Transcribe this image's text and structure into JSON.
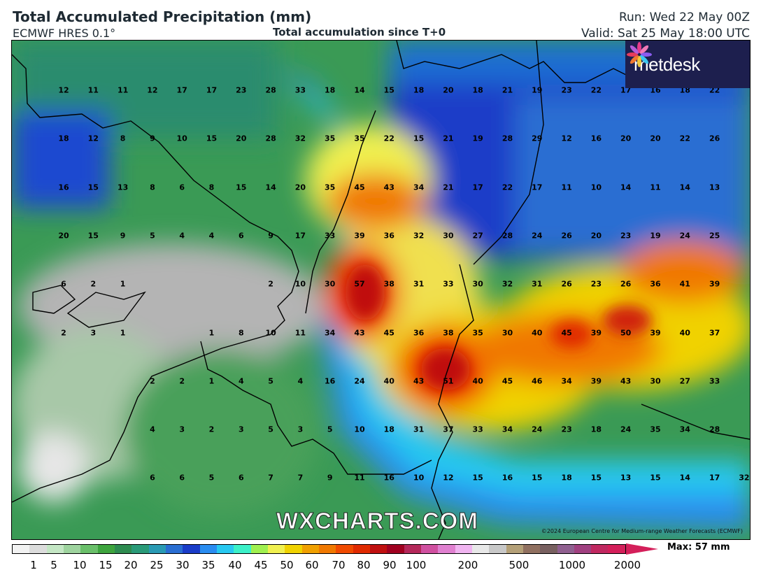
{
  "header": {
    "title": "Total Accumulated Precipitation (mm)",
    "model": "ECMWF HRES 0.1°",
    "subtitle": "Total accumulation since T+0",
    "run": "Run: Wed 22 May 00Z",
    "valid": "Valid: Sat 25 May 18:00 UTC"
  },
  "logo": {
    "text": "metdesk",
    "icon": "metdesk-flower-icon"
  },
  "watermark": "WXCHARTS.COM",
  "copyright": "©2024 European Centre for Medium-range Weather Forecasts (ECMWF)",
  "colorbar": {
    "ticks": [
      "1",
      "5",
      "10",
      "15",
      "20",
      "25",
      "30",
      "35",
      "40",
      "45",
      "50",
      "60",
      "70",
      "80",
      "90",
      "100",
      "200",
      "500",
      "1000",
      "2000"
    ],
    "max_label": "Max: 57 mm",
    "colors": [
      "#f2f2f2",
      "#dcdcdc",
      "#c4e6c4",
      "#9ed39e",
      "#6abf6a",
      "#3ea43e",
      "#2e8b50",
      "#2a9a78",
      "#2a9ab4",
      "#2a6ed2",
      "#1a3cc8",
      "#2a8cf0",
      "#28c8f0",
      "#3cf0c8",
      "#a0f050",
      "#f0f050",
      "#f0d200",
      "#f0a000",
      "#f07800",
      "#f04a00",
      "#e02a00",
      "#c01010",
      "#a00020",
      "#b4285a",
      "#d050a0",
      "#e080d0",
      "#f0b4f0",
      "#e8e8e8",
      "#c8c8c8",
      "#b4a078",
      "#907060",
      "#786060",
      "#906090",
      "#a04080",
      "#c02860",
      "#d41f5a"
    ]
  },
  "map": {
    "grid_values": [
      [
        "12",
        "11",
        "11",
        "12",
        "17",
        "17",
        "23",
        "28",
        "33",
        "18",
        "14",
        "15",
        "18",
        "20",
        "18",
        "21",
        "19",
        "23",
        "22",
        "17",
        "16",
        "18",
        "22"
      ],
      [
        "18",
        "12",
        "8",
        "9",
        "10",
        "15",
        "20",
        "28",
        "32",
        "35",
        "35",
        "22",
        "15",
        "21",
        "19",
        "28",
        "29",
        "12",
        "16",
        "20",
        "20",
        "22",
        "26"
      ],
      [
        "16",
        "15",
        "13",
        "8",
        "6",
        "8",
        "15",
        "14",
        "20",
        "35",
        "45",
        "43",
        "34",
        "21",
        "17",
        "22",
        "17",
        "11",
        "10",
        "14",
        "11",
        "14",
        "13"
      ],
      [
        "20",
        "15",
        "9",
        "5",
        "4",
        "4",
        "6",
        "9",
        "17",
        "33",
        "39",
        "36",
        "32",
        "30",
        "27",
        "28",
        "24",
        "26",
        "20",
        "23",
        "19",
        "24",
        "25"
      ],
      [
        "6",
        "2",
        "1",
        "",
        "",
        "",
        "",
        "2",
        "10",
        "30",
        "57",
        "38",
        "31",
        "33",
        "30",
        "32",
        "31",
        "26",
        "23",
        "26",
        "36",
        "41",
        "39"
      ],
      [
        "2",
        "3",
        "1",
        "",
        "",
        "1",
        "8",
        "10",
        "11",
        "34",
        "43",
        "45",
        "36",
        "38",
        "35",
        "30",
        "40",
        "45",
        "39",
        "50",
        "39",
        "40",
        "37"
      ],
      [
        "",
        "",
        "",
        "2",
        "2",
        "1",
        "4",
        "5",
        "4",
        "16",
        "24",
        "40",
        "43",
        "51",
        "40",
        "45",
        "46",
        "34",
        "39",
        "43",
        "30",
        "27",
        "33"
      ],
      [
        "",
        "",
        "",
        "4",
        "3",
        "2",
        "3",
        "5",
        "3",
        "5",
        "10",
        "18",
        "31",
        "37",
        "33",
        "34",
        "24",
        "23",
        "18",
        "24",
        "35",
        "34",
        "28"
      ],
      [
        "",
        "",
        "",
        "6",
        "6",
        "5",
        "6",
        "7",
        "7",
        "9",
        "11",
        "16",
        "10",
        "12",
        "15",
        "16",
        "15",
        "18",
        "15",
        "13",
        "15",
        "14",
        "17",
        "32"
      ]
    ]
  }
}
